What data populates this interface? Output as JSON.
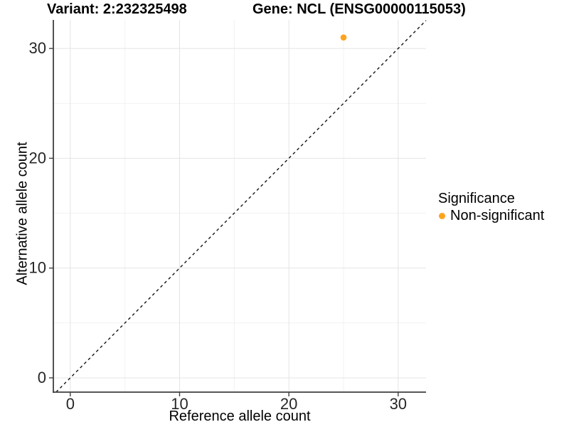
{
  "titles": {
    "left": "Variant: 2:232325498",
    "right": "Gene: NCL (ENSG00000115053)"
  },
  "chart_data": {
    "type": "scatter",
    "xlabel": "Reference allele count",
    "ylabel": "Alternative allele count",
    "xlim": [
      -1.55,
      32.55
    ],
    "ylim": [
      -1.3,
      32.6
    ],
    "x_major_ticks": [
      0,
      10,
      20,
      30
    ],
    "x_minor_ticks": [
      5,
      15,
      25
    ],
    "y_major_ticks": [
      0,
      10,
      20,
      30
    ],
    "y_minor_ticks": [
      5,
      15,
      25
    ],
    "grid": true,
    "points": [
      {
        "x": 25,
        "y": 31,
        "series": "Non-significant"
      }
    ],
    "reference_line": {
      "slope": 1,
      "intercept": 0,
      "style": "dashed"
    },
    "legend": {
      "title": "Significance",
      "position": "right",
      "items": [
        "Non-significant"
      ]
    }
  },
  "colors": {
    "point": "#FEA320",
    "grid_major": "#E4E4E4",
    "grid_minor": "#F2F2F2",
    "axis": "#3F3F3F",
    "reference_line": "#141414",
    "tick_label": "#262626",
    "background": "#FFFFFF"
  }
}
